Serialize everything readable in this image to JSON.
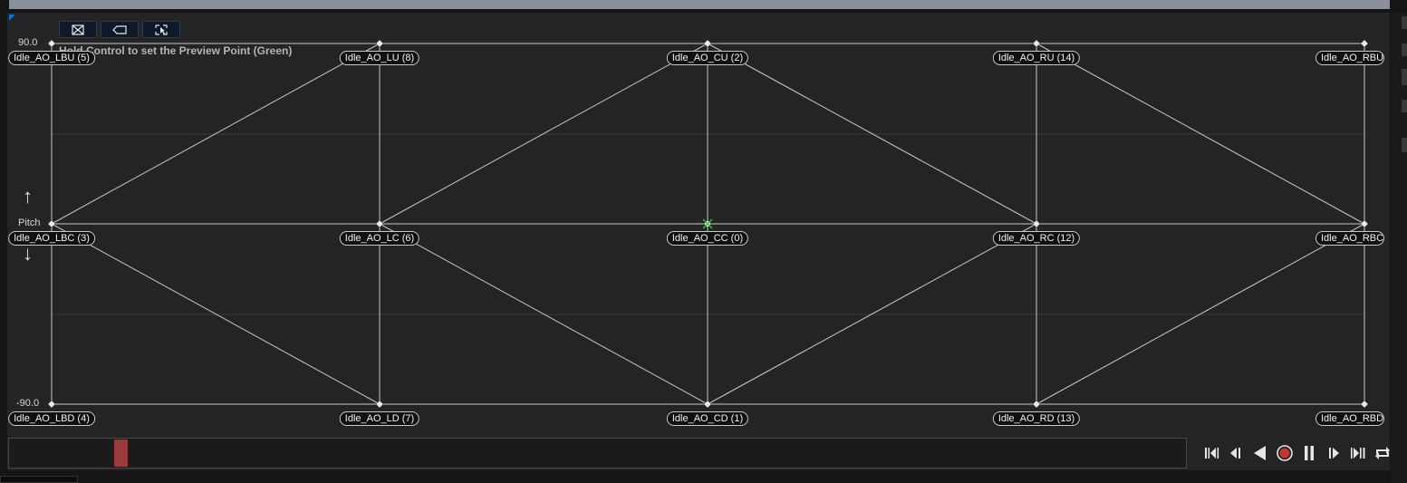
{
  "hint": "Hold Control to set the Preview Point (Green)",
  "axis": {
    "label": "Pitch",
    "max_label": "90.0",
    "min_label": "-90.0",
    "up_arrow": "↑",
    "down_arrow": "↓"
  },
  "samples": [
    {
      "label": "Idle_AO_LBU (5)",
      "col": 0,
      "row": 0
    },
    {
      "label": "Idle_AO_LU (8)",
      "col": 1,
      "row": 0
    },
    {
      "label": "Idle_AO_CU (2)",
      "col": 2,
      "row": 0
    },
    {
      "label": "Idle_AO_RU (14)",
      "col": 3,
      "row": 0
    },
    {
      "label": "Idle_AO_RBU (",
      "col": 4,
      "row": 0
    },
    {
      "label": "Idle_AO_LBC (3)",
      "col": 0,
      "row": 1
    },
    {
      "label": "Idle_AO_LC (6)",
      "col": 1,
      "row": 1
    },
    {
      "label": "Idle_AO_CC (0)",
      "col": 2,
      "row": 1
    },
    {
      "label": "Idle_AO_RC (12)",
      "col": 3,
      "row": 1
    },
    {
      "label": "Idle_AO_RBC",
      "col": 4,
      "row": 1
    },
    {
      "label": "Idle_AO_LBD (4)",
      "col": 0,
      "row": 2
    },
    {
      "label": "Idle_AO_LD (7)",
      "col": 1,
      "row": 2
    },
    {
      "label": "Idle_AO_CD (1)",
      "col": 2,
      "row": 2
    },
    {
      "label": "Idle_AO_RD (13)",
      "col": 3,
      "row": 2
    },
    {
      "label": "Idle_AO_RBD (",
      "col": 4,
      "row": 2
    }
  ],
  "toolbar": {
    "icons": [
      "triangulation-icon",
      "label-tag-icon",
      "select-cursor-icon"
    ]
  },
  "timeline": {
    "scrub_position": 0.09
  },
  "transport": {
    "controls": [
      "skip-to-start-icon",
      "step-back-icon",
      "play-reverse-icon",
      "record-icon",
      "pause-icon",
      "step-forward-icon",
      "skip-to-end-icon",
      "loop-icon"
    ]
  },
  "colors": {
    "panel_bg": "#242424",
    "grid_line": "#c8c8c8",
    "record": "#c0392b",
    "scrub": "#9b3a3a",
    "preview_point": "#3fbf3f"
  }
}
